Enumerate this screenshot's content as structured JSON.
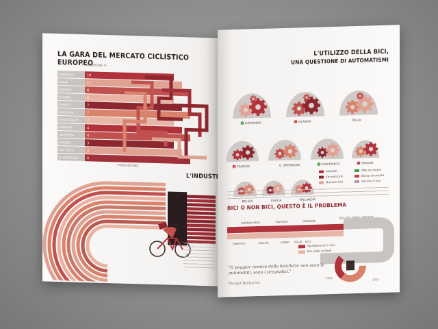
{
  "left_page": {
    "title": "LA GARA DEL MERCATO CICLISTICO EUROPEO",
    "bar_axis_label": "PRODUZIONE %",
    "countries": [
      {
        "name": "GERMANIA",
        "value": "19"
      },
      {
        "name": "ITALIA",
        "value": "17"
      },
      {
        "name": "POLONIA",
        "value": "8"
      },
      {
        "name": "OLANDA",
        "value": "8"
      },
      {
        "name": "FRANCIA",
        "value": "7"
      },
      {
        "name": "BULGARIA",
        "value": "7"
      },
      {
        "name": "PORTOGALLO",
        "value": "7"
      },
      {
        "name": "ROMANIA",
        "value": "4"
      },
      {
        "name": "UNGHERIA",
        "value": "4"
      },
      {
        "name": "SPAGNA",
        "value": "3"
      },
      {
        "name": "REP. CECA",
        "value": "3"
      },
      {
        "name": "G. BRETAGNA",
        "value": "0"
      }
    ],
    "production_label": "PRODUZIONE",
    "industry_title": "L'INDUSTRIA"
  },
  "right_page": {
    "title_line1": "L'UTILIZZO DELLA BICI,",
    "title_line2": "UNA QUESTIONE DI AUTOMATISMI",
    "gear_countries_row1": [
      {
        "label": "GERMANIA",
        "badge": "1"
      },
      {
        "label": "OLANDA",
        "badge": "2"
      },
      {
        "label": "ITALIA",
        "badge": ""
      }
    ],
    "gear_countries_row2": [
      {
        "label": "FRANCIA",
        "badge": "2"
      },
      {
        "label": "G. BRETAGNA",
        "badge": ""
      },
      {
        "label": "DANIMARCA",
        "badge": "1"
      },
      {
        "label": "SPAGNA",
        "badge": "3"
      }
    ],
    "gear_countries_row3": [
      {
        "label": "BELGIO",
        "badge": ""
      },
      {
        "label": "SVEZIA",
        "badge": ""
      },
      {
        "label": "FINLANDIA",
        "badge": ""
      }
    ],
    "legend": [
      {
        "label": "Abitanti",
        "color": "#b2323c"
      },
      {
        "label": "Km percorsi",
        "color": "#8c2730"
      },
      {
        "label": "Numero bici",
        "color": "#e0a292"
      },
      {
        "label": "Alta sicurezza",
        "color": "#3e9a44"
      },
      {
        "label": "Bassa sicurezza",
        "color": "#c63a3a"
      },
      {
        "label": "Volume d'uso",
        "color": "#a89e9b"
      }
    ],
    "section2_title": "BICI O NON BICI, QUESTO È IL PROBLEMA",
    "timeline_labels_top": [
      "AZIENDA PESA",
      "TRAFFICO",
      "DISTANZE"
    ],
    "timeline_labels_bottom": [
      "TRAFFICO",
      "SALUTE",
      "HOBBY",
      "SOLDI",
      "ECO"
    ],
    "urban_label": "BICI ED AREE URBANE",
    "legend2": [
      {
        "label": "Spostamenti in bici",
        "color": "#b2323c"
      },
      {
        "label": "Km piste ciclabili",
        "color": "#e6b7a8"
      }
    ],
    "quote": "\"Il peggior nemico delle biciclette non sono le automobili, sono i pregiudizi.\"",
    "quote_author": "Margot Wallström",
    "years": [
      "2005",
      "2013"
    ]
  },
  "colors": {
    "dark_red": "#8c2730",
    "mid_red": "#b23a40",
    "salmon": "#d9826c",
    "light_salmon": "#e8b3a3",
    "gear_grey": "#c8c2c0"
  }
}
